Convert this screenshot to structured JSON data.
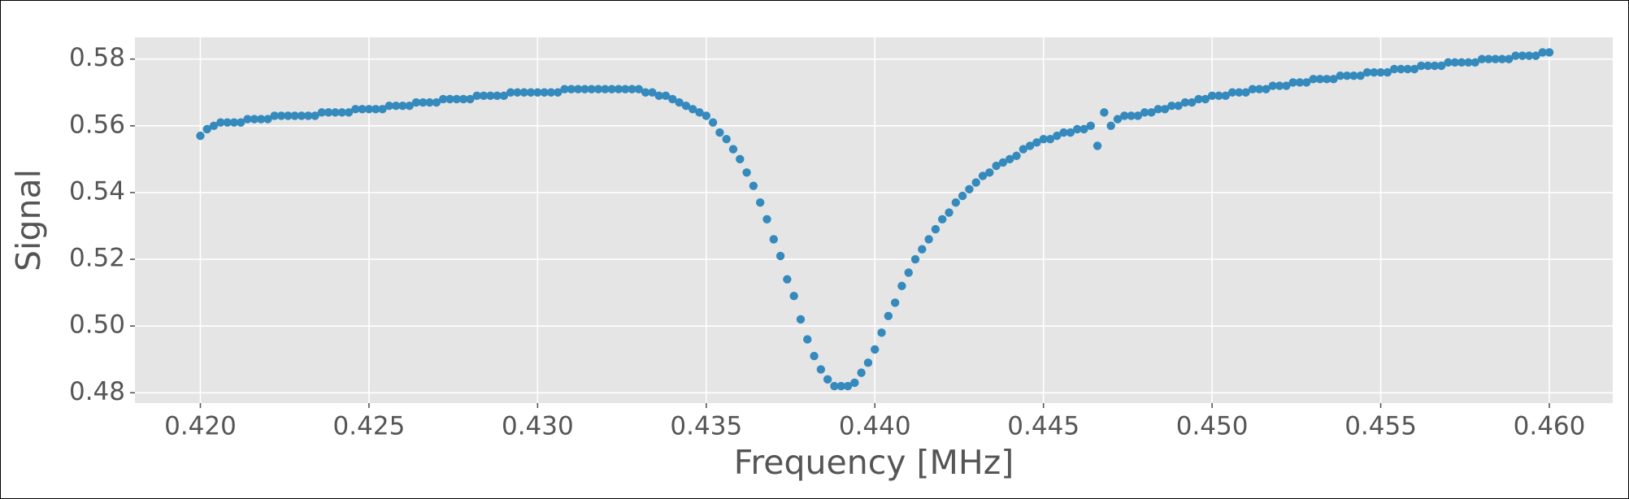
{
  "chart_data": {
    "type": "scatter",
    "xlabel": "Frequency [MHz]",
    "ylabel": "Signal",
    "color": "#348abd",
    "grid": true,
    "xlim": [
      0.41806,
      0.46188
    ],
    "ylim": [
      0.4769,
      0.5865
    ],
    "xticks": [
      {
        "value": 0.42,
        "label": "0.420"
      },
      0.425,
      {
        "value": 0.43,
        "label": "0.430"
      },
      0.435,
      {
        "value": 0.44,
        "label": "0.440"
      },
      0.445,
      {
        "value": 0.45,
        "label": "0.450"
      },
      0.455,
      {
        "value": 0.46,
        "label": "0.460"
      }
    ],
    "yticks": [
      0.48,
      {
        "value": 0.5,
        "label": "0.50"
      },
      0.52,
      0.54,
      0.56,
      0.58
    ],
    "x": [
      0.42,
      0.4202,
      0.4204,
      0.4206,
      0.4208,
      0.421,
      0.4212,
      0.4214,
      0.4216,
      0.4218,
      0.422,
      0.4222,
      0.4224,
      0.4226,
      0.4228,
      0.423,
      0.4232,
      0.4234,
      0.4236,
      0.4238,
      0.424,
      0.4242,
      0.4244,
      0.4246,
      0.4248,
      0.425,
      0.4252,
      0.4254,
      0.4256,
      0.4258,
      0.426,
      0.4262,
      0.4264,
      0.4266,
      0.4268,
      0.427,
      0.4272,
      0.4274,
      0.4276,
      0.4278,
      0.428,
      0.4282,
      0.4284,
      0.4286,
      0.4288,
      0.429,
      0.4292,
      0.4294,
      0.4296,
      0.4298,
      0.43,
      0.4302,
      0.4304,
      0.4306,
      0.4308,
      0.431,
      0.4312,
      0.4314,
      0.4316,
      0.4318,
      0.432,
      0.4322,
      0.4324,
      0.4326,
      0.4328,
      0.433,
      0.4332,
      0.4334,
      0.4336,
      0.4338,
      0.434,
      0.4342,
      0.4344,
      0.4346,
      0.4348,
      0.435,
      0.4352,
      0.4354,
      0.4356,
      0.4358,
      0.436,
      0.4362,
      0.4364,
      0.4366,
      0.4368,
      0.437,
      0.4372,
      0.4374,
      0.4376,
      0.4378,
      0.438,
      0.4382,
      0.4384,
      0.4386,
      0.4388,
      0.439,
      0.4392,
      0.4394,
      0.4396,
      0.4398,
      0.44,
      0.4402,
      0.4404,
      0.4406,
      0.4408,
      0.441,
      0.4412,
      0.4414,
      0.4416,
      0.4418,
      0.442,
      0.4422,
      0.4424,
      0.4426,
      0.4428,
      0.443,
      0.4432,
      0.4434,
      0.4436,
      0.4438,
      0.444,
      0.4442,
      0.4444,
      0.4446,
      0.4448,
      0.445,
      0.4452,
      0.4454,
      0.4456,
      0.4458,
      0.446,
      0.4462,
      0.4464,
      0.4466,
      0.4468,
      0.447,
      0.4472,
      0.4474,
      0.4476,
      0.4478,
      0.448,
      0.4482,
      0.4484,
      0.4486,
      0.4488,
      0.449,
      0.4492,
      0.4494,
      0.4496,
      0.4498,
      0.45,
      0.4502,
      0.4504,
      0.4506,
      0.4508,
      0.451,
      0.4512,
      0.4514,
      0.4516,
      0.4518,
      0.452,
      0.4522,
      0.4524,
      0.4526,
      0.4528,
      0.453,
      0.4532,
      0.4534,
      0.4536,
      0.4538,
      0.454,
      0.4542,
      0.4544,
      0.4546,
      0.4548,
      0.455,
      0.4552,
      0.4554,
      0.4556,
      0.4558,
      0.456,
      0.4562,
      0.4564,
      0.4566,
      0.4568,
      0.457,
      0.4572,
      0.4574,
      0.4576,
      0.4578,
      0.458,
      0.4582,
      0.4584,
      0.4586,
      0.4588,
      0.459,
      0.4592,
      0.4594,
      0.4596,
      0.4598,
      0.46
    ],
    "values": [
      0.557,
      0.559,
      0.56,
      0.561,
      0.561,
      0.561,
      0.561,
      0.562,
      0.562,
      0.562,
      0.562,
      0.563,
      0.563,
      0.563,
      0.563,
      0.563,
      0.563,
      0.563,
      0.564,
      0.564,
      0.564,
      0.564,
      0.564,
      0.565,
      0.565,
      0.565,
      0.565,
      0.565,
      0.566,
      0.566,
      0.566,
      0.566,
      0.567,
      0.567,
      0.567,
      0.567,
      0.568,
      0.568,
      0.568,
      0.568,
      0.568,
      0.569,
      0.569,
      0.569,
      0.569,
      0.569,
      0.57,
      0.57,
      0.57,
      0.57,
      0.57,
      0.57,
      0.57,
      0.57,
      0.571,
      0.571,
      0.571,
      0.571,
      0.571,
      0.571,
      0.571,
      0.571,
      0.571,
      0.571,
      0.571,
      0.571,
      0.57,
      0.57,
      0.569,
      0.569,
      0.568,
      0.567,
      0.566,
      0.565,
      0.564,
      0.563,
      0.561,
      0.558,
      0.556,
      0.553,
      0.55,
      0.546,
      0.542,
      0.537,
      0.532,
      0.526,
      0.521,
      0.514,
      0.509,
      0.502,
      0.496,
      0.491,
      0.487,
      0.484,
      0.482,
      0.482,
      0.482,
      0.483,
      0.486,
      0.489,
      0.493,
      0.498,
      0.503,
      0.507,
      0.512,
      0.516,
      0.52,
      0.523,
      0.526,
      0.529,
      0.532,
      0.534,
      0.537,
      0.539,
      0.541,
      0.543,
      0.545,
      0.546,
      0.548,
      0.549,
      0.55,
      0.551,
      0.553,
      0.554,
      0.555,
      0.556,
      0.556,
      0.557,
      0.558,
      0.558,
      0.559,
      0.559,
      0.56,
      0.554,
      0.564,
      0.56,
      0.562,
      0.563,
      0.563,
      0.563,
      0.564,
      0.564,
      0.565,
      0.565,
      0.566,
      0.566,
      0.567,
      0.567,
      0.568,
      0.568,
      0.569,
      0.569,
      0.569,
      0.57,
      0.57,
      0.57,
      0.571,
      0.571,
      0.571,
      0.572,
      0.572,
      0.572,
      0.573,
      0.573,
      0.573,
      0.574,
      0.574,
      0.574,
      0.574,
      0.575,
      0.575,
      0.575,
      0.575,
      0.576,
      0.576,
      0.576,
      0.576,
      0.577,
      0.577,
      0.577,
      0.577,
      0.578,
      0.578,
      0.578,
      0.578,
      0.579,
      0.579,
      0.579,
      0.579,
      0.579,
      0.58,
      0.58,
      0.58,
      0.58,
      0.58,
      0.581,
      0.581,
      0.581,
      0.581,
      0.582,
      0.582
    ]
  }
}
